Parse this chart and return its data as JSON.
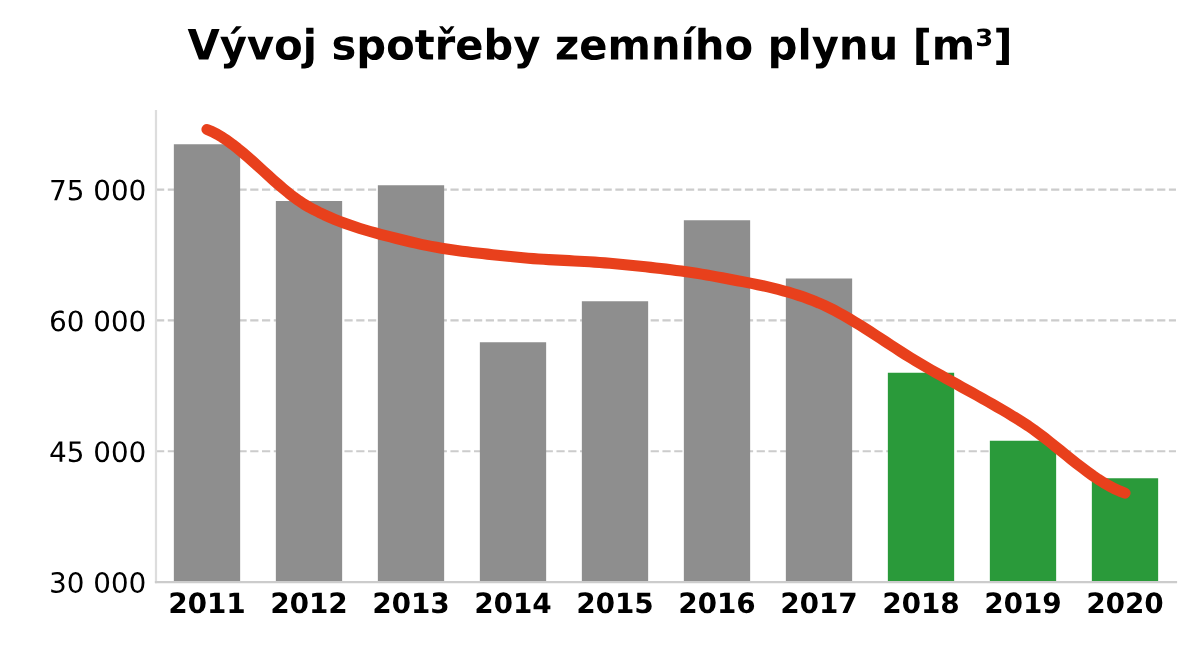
{
  "chart_data": {
    "type": "bar",
    "title": "Vývoj spotřeby zemního plynu [m³]",
    "categories": [
      "2011",
      "2012",
      "2013",
      "2014",
      "2015",
      "2016",
      "2017",
      "2018",
      "2019",
      "2020"
    ],
    "series": [
      {
        "colors": [
          "#8e8e8e",
          "#8e8e8e",
          "#8e8e8e",
          "#8e8e8e",
          "#8e8e8e",
          "#8e8e8e",
          "#8e8e8e",
          "#2a9a3a",
          "#2a9a3a",
          "#2a9a3a"
        ],
        "values": [
          80200,
          73700,
          75500,
          57500,
          62200,
          71500,
          64800,
          54000,
          46200,
          41900
        ]
      },
      {
        "type": "line",
        "color": "#e8401c",
        "values": [
          81900,
          73000,
          69000,
          67300,
          66500,
          65000,
          62000,
          55000,
          48300,
          40200
        ]
      }
    ],
    "ylim": [
      30000,
      84000
    ],
    "yticks": [
      {
        "value": 30000,
        "label": "30 000"
      },
      {
        "value": 45000,
        "label": "45 000"
      },
      {
        "value": 60000,
        "label": "60 000"
      },
      {
        "value": 75000,
        "label": "75 000"
      }
    ],
    "grid": "y",
    "line_style": "solid",
    "marker": "none"
  }
}
